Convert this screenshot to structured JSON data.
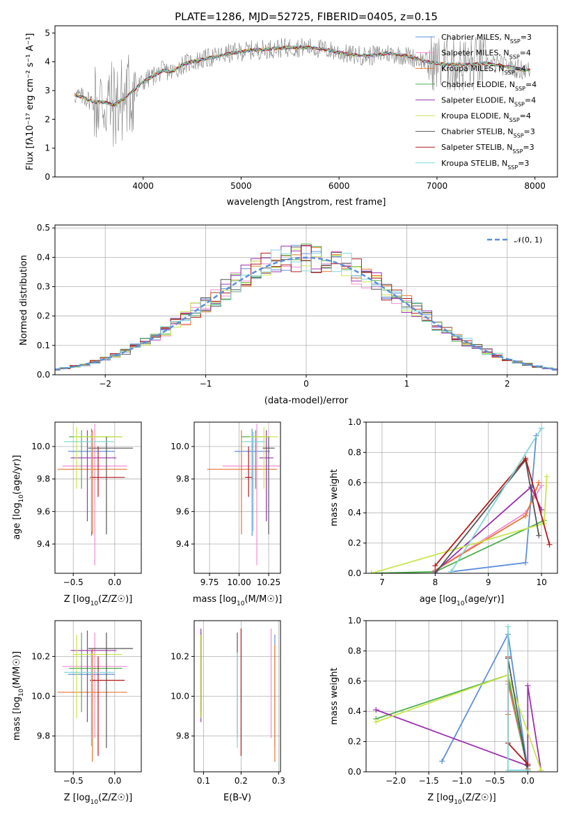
{
  "figure_title": "PLATE=1286, MJD=52725, FIBERID=0405, z=0.15",
  "colors": {
    "Chabrier MILES": "#5d8fd9",
    "Salpeter MILES": "#f48ad0",
    "Kroupa MILES": "#e8762c",
    "Chabrier ELODIE": "#4daf4a",
    "Salpeter ELODIE": "#9b30b0",
    "Kroupa ELODIE": "#c8e64b",
    "Chabrier STELIB": "#555555",
    "Salpeter STELIB": "#b41818",
    "Kroupa STELIB": "#7fd6d6",
    "data": "#808080",
    "normal": "#5b8fd9"
  },
  "chart_data": [
    {
      "id": "spectrum",
      "type": "line",
      "xlabel": "wavelength [Angstrom, rest frame]",
      "ylabel": "Flux [f_λ 10^-17 erg cm^-2 s^-1 A^-1]",
      "xlim": [
        3100,
        8230
      ],
      "ylim": [
        0,
        5.25
      ],
      "xticks": [
        4000,
        5000,
        6000,
        7000,
        8000
      ],
      "yticks": [
        0,
        1,
        2,
        3,
        4,
        5
      ],
      "legend": [
        {
          "base": "Chabrier MILES, N",
          "sub": "SSP",
          "rest": "=3"
        },
        {
          "base": "Salpeter MILES, N",
          "sub": "SSP",
          "rest": "=4"
        },
        {
          "base": "Kroupa MILES, N",
          "sub": "SSP",
          "rest": "=4"
        },
        {
          "base": "Chabrier ELODIE, N",
          "sub": "SSP",
          "rest": "=4"
        },
        {
          "base": "Salpeter ELODIE, N",
          "sub": "SSP",
          "rest": "=4"
        },
        {
          "base": "Kroupa ELODIE, N",
          "sub": "SSP",
          "rest": "=4"
        },
        {
          "base": "Chabrier STELIB, N",
          "sub": "SSP",
          "rest": "=3"
        },
        {
          "base": "Salpeter STELIB, N",
          "sub": "SSP",
          "rest": "=3"
        },
        {
          "base": "Kroupa STELIB, N",
          "sub": "SSP",
          "rest": "=3"
        }
      ],
      "model_curve": {
        "x": [
          3300,
          3400,
          3500,
          3600,
          3700,
          3800,
          3900,
          4000,
          4100,
          4200,
          4300,
          4400,
          4500,
          4700,
          4900,
          5100,
          5300,
          5500,
          5700,
          5900,
          6100,
          6300,
          6500,
          6700,
          6900,
          7100,
          7300,
          7500,
          7700,
          7900
        ],
        "y": [
          2.85,
          2.75,
          2.6,
          2.6,
          2.5,
          2.7,
          3.0,
          3.3,
          3.5,
          3.7,
          3.65,
          3.9,
          4.0,
          4.15,
          4.3,
          4.4,
          4.45,
          4.5,
          4.5,
          4.4,
          4.25,
          4.2,
          4.3,
          4.2,
          4.0,
          3.9,
          3.9,
          3.95,
          3.85,
          3.7
        ]
      }
    },
    {
      "id": "residuals",
      "type": "line",
      "xlabel": "(data-model)/error",
      "ylabel": "Normed distribution",
      "xlim": [
        -2.5,
        2.5
      ],
      "ylim": [
        0,
        0.51
      ],
      "xticks": [
        -2,
        -1,
        0,
        1,
        2
      ],
      "yticks": [
        0.0,
        0.1,
        0.2,
        0.3,
        0.4,
        0.5
      ],
      "legend_label": "𝒩(0, 1)"
    },
    {
      "id": "age-Z",
      "type": "scatter",
      "xlabel_pre": "Z [log",
      "xlabel_sub": "10",
      "xlabel_post": "(Z/Z☉)]",
      "ylabel_pre": "age  [log",
      "ylabel_sub": "10",
      "ylabel_post": "(age/yr)]",
      "xlim": [
        -0.72,
        0.32
      ],
      "ylim": [
        9.22,
        10.15
      ],
      "xticks": [
        -0.5,
        0.0
      ],
      "xticklabels": [
        "−0.5",
        "0.0"
      ],
      "yticks": [
        9.4,
        9.6,
        9.8,
        10.0
      ],
      "points": [
        {
          "m": "Chabrier MILES",
          "x": -0.28,
          "xe": [
            0.28,
            0.28
          ],
          "y": 9.97,
          "ye": [
            0.52,
            0.14
          ]
        },
        {
          "m": "Salpeter MILES",
          "x": -0.24,
          "xe": [
            0.39,
            0.39
          ],
          "y": 9.88,
          "ye": [
            0.61,
            0.26
          ]
        },
        {
          "m": "Kroupa MILES",
          "x": -0.27,
          "xe": [
            0.42,
            0.42
          ],
          "y": 9.86,
          "ye": [
            0.4,
            0.24
          ]
        },
        {
          "m": "Chabrier ELODIE",
          "x": -0.4,
          "xe": [
            0.15,
            0.49
          ],
          "y": 10.06,
          "ye": [
            0.32,
            0.04
          ]
        },
        {
          "m": "Salpeter ELODIE",
          "x": -0.33,
          "xe": [
            0.2,
            0.35
          ],
          "y": 9.93,
          "ye": [
            0.39,
            0.17
          ]
        },
        {
          "m": "Kroupa ELODIE",
          "x": -0.46,
          "xe": [
            0.04,
            0.55
          ],
          "y": 10.06,
          "ye": [
            0.32,
            0.06
          ]
        },
        {
          "m": "Chabrier STELIB",
          "x": -0.1,
          "xe": [
            0.22,
            0.32
          ],
          "y": 9.99,
          "ye": [
            0.53,
            0.07
          ]
        },
        {
          "m": "Salpeter STELIB",
          "x": -0.2,
          "xe": [
            0.1,
            0.32
          ],
          "y": 9.81,
          "ye": [
            0.12,
            0.19
          ]
        },
        {
          "m": "Kroupa STELIB",
          "x": -0.28,
          "xe": [
            0.33,
            0.27
          ],
          "y": 10.03,
          "ye": [
            0.55,
            0.06
          ]
        }
      ]
    },
    {
      "id": "age-mass",
      "type": "scatter",
      "xlabel_pre": "mass [log",
      "xlabel_sub": "10",
      "xlabel_post": "(M/M☉)]",
      "xlim": [
        9.62,
        10.35
      ],
      "ylim": [
        9.22,
        10.15
      ],
      "xticks": [
        9.75,
        10.0,
        10.25
      ],
      "xticklabels": [
        "9.75",
        "10.00",
        "10.25"
      ],
      "yticks": [
        9.4,
        9.6,
        9.8,
        10.0
      ],
      "points": [
        {
          "m": "Chabrier MILES",
          "x": 10.11,
          "xe": [
            0.15,
            0.15
          ],
          "y": 9.97,
          "ye": [
            0.52,
            0.14
          ]
        },
        {
          "m": "Salpeter MILES",
          "x": 10.15,
          "xe": [
            0.29,
            0.24
          ],
          "y": 9.88,
          "ye": [
            0.61,
            0.26
          ]
        },
        {
          "m": "Kroupa MILES",
          "x": 10.02,
          "xe": [
            0.29,
            0.3
          ],
          "y": 9.86,
          "ye": [
            0.4,
            0.24
          ]
        },
        {
          "m": "Chabrier ELODIE",
          "x": 10.14,
          "xe": [
            0.12,
            0.12
          ],
          "y": 10.06,
          "ye": [
            0.32,
            0.04
          ]
        },
        {
          "m": "Salpeter ELODIE",
          "x": 10.23,
          "xe": [
            0.06,
            0.06
          ],
          "y": 9.93,
          "ye": [
            0.39,
            0.17
          ]
        },
        {
          "m": "Kroupa ELODIE",
          "x": 10.21,
          "xe": [
            0.12,
            0.12
          ],
          "y": 10.06,
          "ye": [
            0.32,
            0.06
          ]
        },
        {
          "m": "Chabrier STELIB",
          "x": 10.25,
          "xe": [
            0.05,
            0.05
          ],
          "y": 9.99,
          "ye": [
            0.53,
            0.07
          ]
        },
        {
          "m": "Salpeter STELIB",
          "x": 10.08,
          "xe": [
            0.03,
            0.03
          ],
          "y": 9.81,
          "ye": [
            0.12,
            0.19
          ]
        },
        {
          "m": "Kroupa STELIB",
          "x": 10.12,
          "xe": [
            0.1,
            0.1
          ],
          "y": 10.03,
          "ye": [
            0.55,
            0.06
          ]
        }
      ]
    },
    {
      "id": "weight-age",
      "type": "line",
      "xlabel_pre": "age  [log",
      "xlabel_sub": "10",
      "xlabel_post": "(age/yr)]",
      "ylabel": "mass weight",
      "xlim": [
        6.7,
        10.3
      ],
      "ylim": [
        0,
        1.0
      ],
      "xticks": [
        7,
        8,
        9,
        10
      ],
      "yticks": [
        0.0,
        0.2,
        0.4,
        0.6,
        0.8,
        1.0
      ],
      "series": [
        {
          "m": "Chabrier MILES",
          "x": [
            8.3,
            9.7,
            9.9
          ],
          "y": [
            0.01,
            0.07,
            0.91
          ]
        },
        {
          "m": "Salpeter MILES",
          "x": [
            8.0,
            9.7,
            10.0
          ],
          "y": [
            0.02,
            0.4,
            0.58
          ]
        },
        {
          "m": "Kroupa MILES",
          "x": [
            8.0,
            9.7,
            9.95
          ],
          "y": [
            0.02,
            0.38,
            0.6
          ]
        },
        {
          "m": "Chabrier ELODIE",
          "x": [
            6.8,
            8.0,
            10.05
          ],
          "y": [
            0.0,
            0.01,
            0.35
          ]
        },
        {
          "m": "Salpeter ELODIE",
          "x": [
            8.0,
            9.8,
            10.0
          ],
          "y": [
            0.01,
            0.57,
            0.42
          ]
        },
        {
          "m": "Kroupa ELODIE",
          "x": [
            6.8,
            10.05,
            10.1
          ],
          "y": [
            0.0,
            0.33,
            0.64
          ]
        },
        {
          "m": "Chabrier STELIB",
          "x": [
            8.0,
            9.7,
            9.95
          ],
          "y": [
            0.0,
            0.75,
            0.25
          ]
        },
        {
          "m": "Salpeter STELIB",
          "x": [
            8.0,
            9.7,
            10.15
          ],
          "y": [
            0.05,
            0.76,
            0.19
          ]
        },
        {
          "m": "Kroupa STELIB",
          "x": [
            8.3,
            10.0,
            10.0
          ],
          "y": [
            0.01,
            0.96,
            0.96
          ]
        }
      ]
    },
    {
      "id": "mass-Z",
      "type": "scatter",
      "xlabel_pre": "Z [log",
      "xlabel_sub": "10",
      "xlabel_post": "(Z/Z☉)]",
      "ylabel_pre": "mass [log",
      "ylabel_sub": "10",
      "ylabel_post": "(M/M☉)]",
      "xlim": [
        -0.72,
        0.32
      ],
      "ylim": [
        9.62,
        10.38
      ],
      "xticks": [
        -0.5,
        0.0
      ],
      "xticklabels": [
        "−0.5",
        "0.0"
      ],
      "yticks": [
        9.8,
        10.0,
        10.2
      ],
      "points": [
        {
          "m": "Chabrier MILES",
          "x": -0.28,
          "xe": [
            0.28,
            0.28
          ],
          "y": 10.11,
          "ye": [
            0.36,
            0.12
          ]
        },
        {
          "m": "Salpeter MILES",
          "x": -0.24,
          "xe": [
            0.39,
            0.39
          ],
          "y": 10.15,
          "ye": [
            0.36,
            0.17
          ]
        },
        {
          "m": "Kroupa MILES",
          "x": -0.27,
          "xe": [
            0.42,
            0.42
          ],
          "y": 10.02,
          "ye": [
            0.35,
            0.22
          ]
        },
        {
          "m": "Chabrier ELODIE",
          "x": -0.4,
          "xe": [
            0.15,
            0.49
          ],
          "y": 10.14,
          "ye": [
            0.22,
            0.18
          ]
        },
        {
          "m": "Salpeter ELODIE",
          "x": -0.33,
          "xe": [
            0.2,
            0.35
          ],
          "y": 10.23,
          "ye": [
            0.36,
            0.1
          ]
        },
        {
          "m": "Kroupa ELODIE",
          "x": -0.46,
          "xe": [
            0.04,
            0.55
          ],
          "y": 10.21,
          "ye": [
            0.32,
            0.1
          ]
        },
        {
          "m": "Chabrier STELIB",
          "x": -0.1,
          "xe": [
            0.22,
            0.32
          ],
          "y": 10.24,
          "ye": [
            0.5,
            0.08
          ]
        },
        {
          "m": "Salpeter STELIB",
          "x": -0.2,
          "xe": [
            0.1,
            0.32
          ],
          "y": 10.08,
          "ye": [
            0.38,
            0.12
          ]
        },
        {
          "m": "Kroupa STELIB",
          "x": -0.28,
          "xe": [
            0.33,
            0.27
          ],
          "y": 10.12,
          "ye": [
            0.37,
            0.1
          ]
        }
      ]
    },
    {
      "id": "mass-ebv",
      "type": "scatter",
      "xlabel_pre": "E(B-V)",
      "xlabel_sub": "",
      "xlabel_post": "",
      "xlim": [
        0.075,
        0.305
      ],
      "ylim": [
        9.62,
        10.38
      ],
      "xticks": [
        0.1,
        0.2,
        0.3
      ],
      "xticklabels": [
        "0.1",
        "0.2",
        "0.3"
      ],
      "yticks": [
        9.8,
        10.0,
        10.2
      ],
      "points": [
        {
          "m": "Chabrier MILES",
          "x": 0.29,
          "xe": [
            0,
            0
          ],
          "y": 10.11,
          "ye": [
            0.36,
            0.2
          ]
        },
        {
          "m": "Salpeter MILES",
          "x": 0.28,
          "xe": [
            0,
            0
          ],
          "y": 10.15,
          "ye": [
            0.36,
            0.19
          ]
        },
        {
          "m": "Kroupa MILES",
          "x": 0.29,
          "xe": [
            0,
            0
          ],
          "y": 10.02,
          "ye": [
            0.35,
            0.24
          ]
        },
        {
          "m": "Chabrier ELODIE",
          "x": 0.093,
          "xe": [
            0,
            0
          ],
          "y": 10.14,
          "ye": [
            0.22,
            0.18
          ]
        },
        {
          "m": "Salpeter ELODIE",
          "x": 0.093,
          "xe": [
            0,
            0
          ],
          "y": 10.23,
          "ye": [
            0.36,
            0.11
          ]
        },
        {
          "m": "Kroupa ELODIE",
          "x": 0.092,
          "xe": [
            0,
            0
          ],
          "y": 10.21,
          "ye": [
            0.32,
            0.1
          ]
        },
        {
          "m": "Chabrier STELIB",
          "x": 0.19,
          "xe": [
            0,
            0
          ],
          "y": 10.24,
          "ye": [
            0.45,
            0.08
          ]
        },
        {
          "m": "Salpeter STELIB",
          "x": 0.2,
          "xe": [
            0,
            0
          ],
          "y": 10.08,
          "ye": [
            0.38,
            0.26
          ]
        },
        {
          "m": "Kroupa STELIB",
          "x": 0.19,
          "xe": [
            0,
            0
          ],
          "y": 10.12,
          "ye": [
            0.38,
            0.1
          ]
        }
      ]
    },
    {
      "id": "weight-Z",
      "type": "line",
      "xlabel_pre": "Z [log",
      "xlabel_sub": "10",
      "xlabel_post": "(Z/Z☉)]",
      "ylabel": "mass weight",
      "xlim": [
        -2.45,
        0.45
      ],
      "ylim": [
        0,
        1.0
      ],
      "xticks": [
        -2.0,
        -1.5,
        -1.0,
        -0.5,
        0.0
      ],
      "xticklabels": [
        "−2.0",
        "−1.5",
        "−1.0",
        "−0.5",
        "0.0"
      ],
      "yticks": [
        0.0,
        0.2,
        0.4,
        0.6,
        0.8,
        1.0
      ],
      "series": [
        {
          "m": "Chabrier MILES",
          "x": [
            -1.3,
            -0.3,
            0.0
          ],
          "y": [
            0.07,
            0.91,
            0.01
          ]
        },
        {
          "m": "Salpeter MILES",
          "x": [
            -0.3,
            -0.3,
            0.0
          ],
          "y": [
            0.4,
            0.58,
            0.02
          ]
        },
        {
          "m": "Kroupa MILES",
          "x": [
            -0.3,
            -0.3,
            0.0
          ],
          "y": [
            0.38,
            0.6,
            0.02
          ]
        },
        {
          "m": "Chabrier ELODIE",
          "x": [
            -2.3,
            -0.3,
            0.0
          ],
          "y": [
            0.35,
            0.64,
            0.01
          ]
        },
        {
          "m": "Salpeter ELODIE",
          "x": [
            -2.3,
            0.0,
            0.0,
            0.2
          ],
          "y": [
            0.41,
            0.04,
            0.57,
            0.01
          ]
        },
        {
          "m": "Kroupa ELODIE",
          "x": [
            -2.3,
            -0.3,
            0.2
          ],
          "y": [
            0.33,
            0.64,
            0.01
          ]
        },
        {
          "m": "Chabrier STELIB",
          "x": [
            -0.3,
            0.0,
            0.0
          ],
          "y": [
            0.75,
            0.0,
            0.04
          ]
        },
        {
          "m": "Salpeter STELIB",
          "x": [
            -0.3,
            -0.3,
            0.0
          ],
          "y": [
            0.76,
            0.19,
            0.05
          ]
        },
        {
          "m": "Kroupa STELIB",
          "x": [
            -0.3,
            -0.3,
            0.0
          ],
          "y": [
            0.96,
            0.01,
            0.01
          ]
        }
      ]
    }
  ]
}
